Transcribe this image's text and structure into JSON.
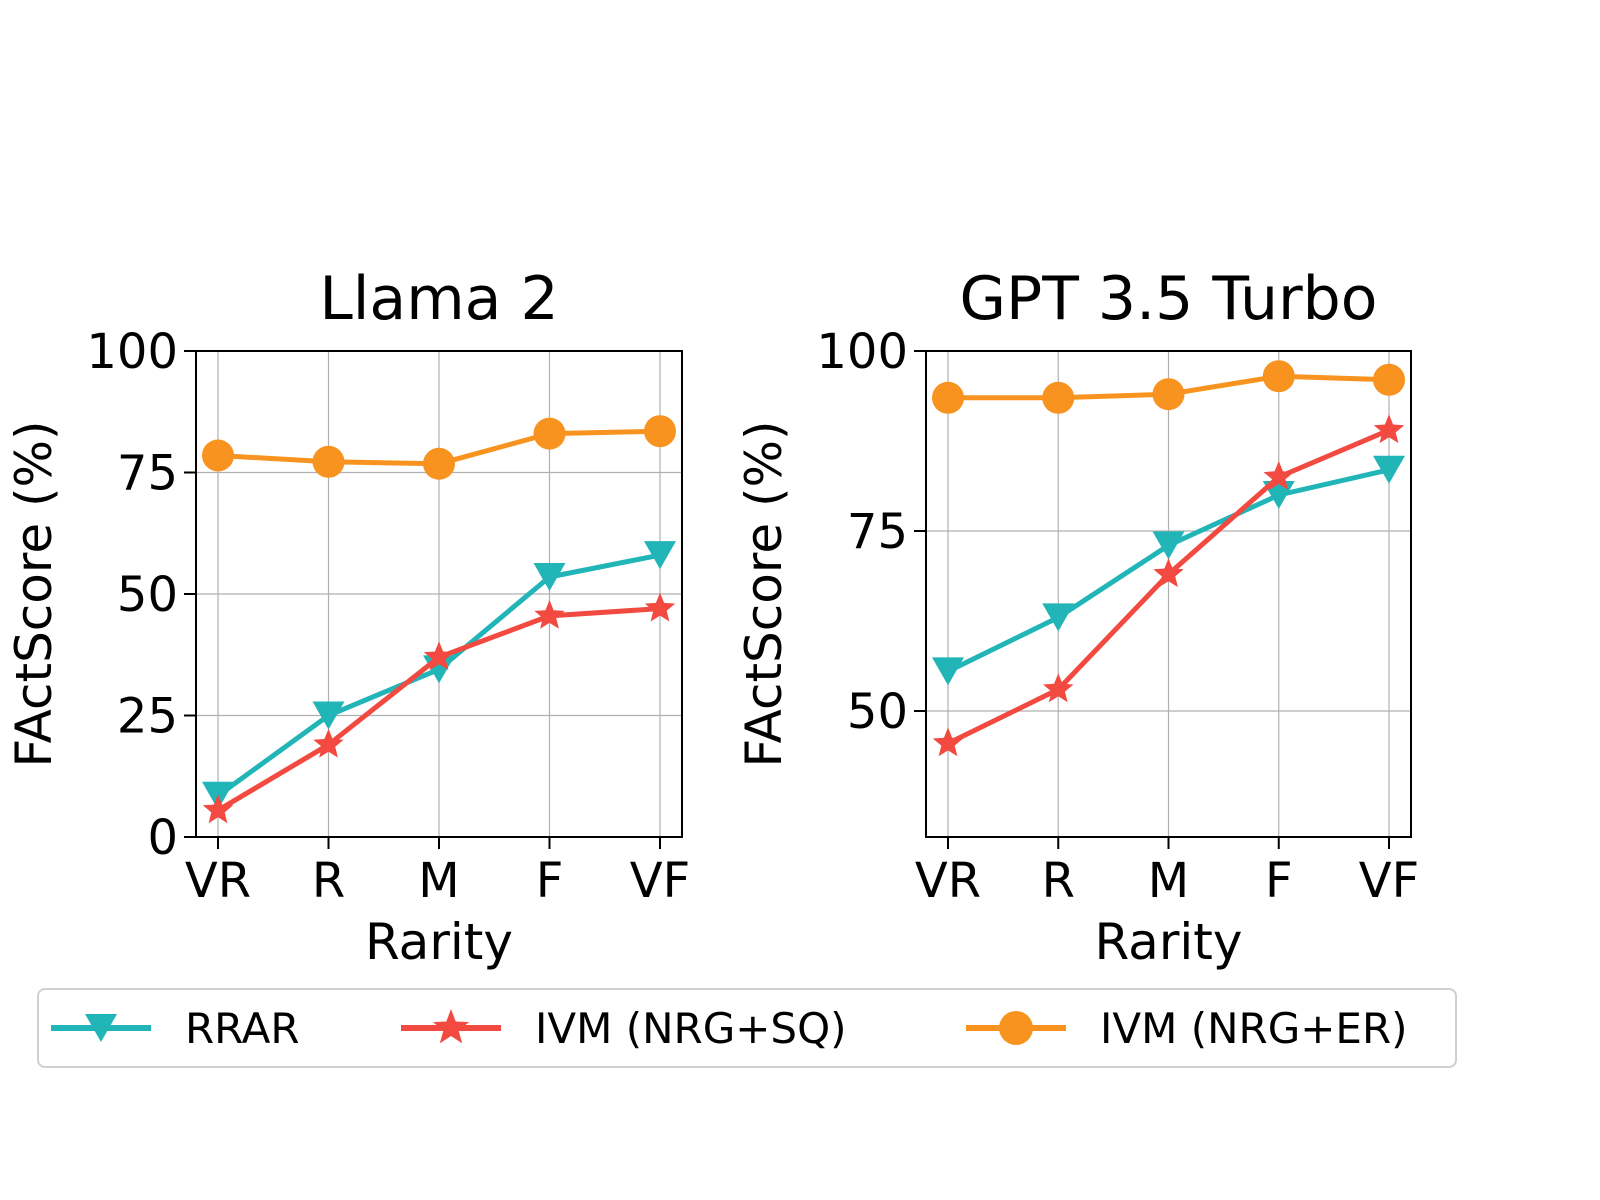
{
  "chart_data": [
    {
      "type": "line",
      "title": "Llama 2",
      "xlabel": "Rarity",
      "ylabel": "FActScore (%)",
      "categories": [
        "VR",
        "R",
        "M",
        "F",
        "VF"
      ],
      "ylim": [
        0,
        100
      ],
      "yticks": [
        0,
        25,
        50,
        75,
        100
      ],
      "grid": true,
      "series": [
        {
          "name": "RRAR",
          "values": [
            8.5,
            25,
            34.5,
            53.5,
            58
          ],
          "color": "#22b5b8",
          "marker": "triangle-down"
        },
        {
          "name": "IVM (NRG+SQ)",
          "values": [
            5.5,
            19,
            37,
            45.5,
            47
          ],
          "color": "#f24a40",
          "marker": "star"
        },
        {
          "name": "IVM (NRG+ER)",
          "values": [
            78.5,
            77.2,
            76.8,
            83,
            83.5
          ],
          "color": "#f7931e",
          "marker": "circle"
        }
      ]
    },
    {
      "type": "line",
      "title": "GPT 3.5 Turbo",
      "xlabel": "Rarity",
      "ylabel": "FActScore (%)",
      "categories": [
        "VR",
        "R",
        "M",
        "F",
        "VF"
      ],
      "ylim": [
        32.5,
        100
      ],
      "yticks": [
        50,
        75,
        100
      ],
      "grid": true,
      "series": [
        {
          "name": "RRAR",
          "values": [
            55.5,
            63,
            73,
            80,
            83.5
          ],
          "color": "#22b5b8",
          "marker": "triangle-down"
        },
        {
          "name": "IVM (NRG+SQ)",
          "values": [
            45.5,
            53,
            69,
            82.5,
            89
          ],
          "color": "#f24a40",
          "marker": "star"
        },
        {
          "name": "IVM (NRG+ER)",
          "values": [
            93.5,
            93.5,
            94,
            96.5,
            96
          ],
          "color": "#f7931e",
          "marker": "circle"
        }
      ]
    }
  ],
  "legend": {
    "placement": "bottom",
    "items": [
      {
        "label": "RRAR",
        "color": "#22b5b8",
        "marker": "triangle-down"
      },
      {
        "label": "IVM (NRG+SQ)",
        "color": "#f24a40",
        "marker": "star"
      },
      {
        "label": "IVM (NRG+ER)",
        "color": "#f7931e",
        "marker": "circle"
      }
    ]
  }
}
